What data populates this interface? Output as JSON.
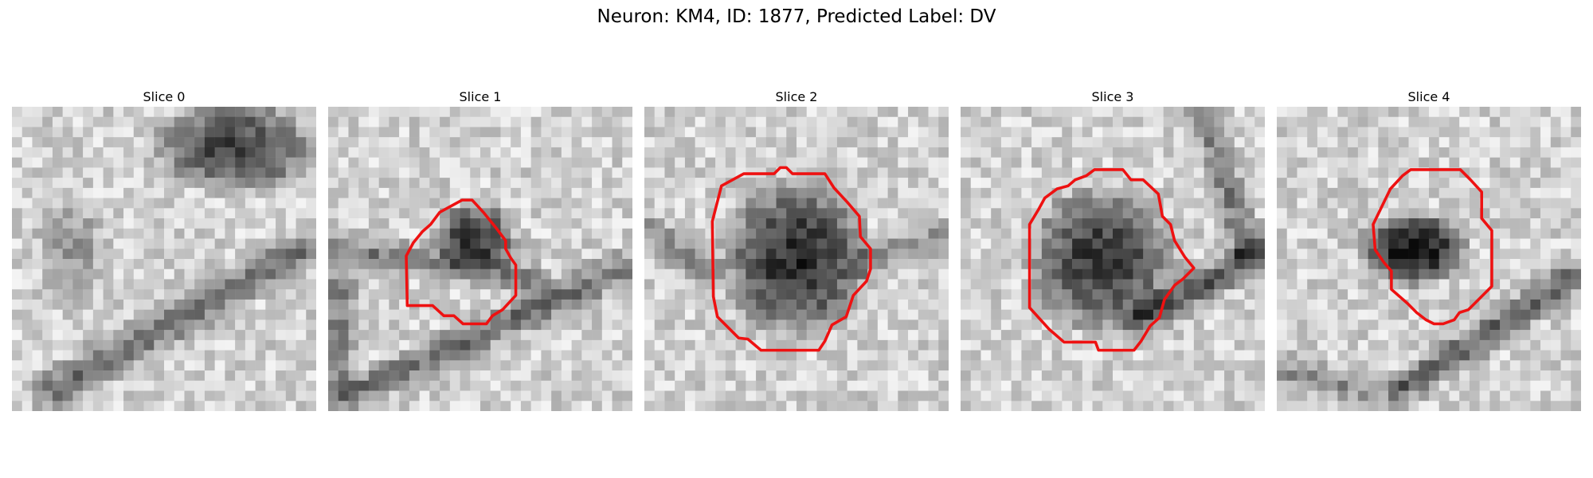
{
  "figure": {
    "suptitle": "Neuron: KM4, ID: 1877, Predicted Label: DV",
    "panels": [
      {
        "title": "Slice 0",
        "has_contour": false
      },
      {
        "title": "Slice 1",
        "has_contour": true
      },
      {
        "title": "Slice 2",
        "has_contour": true
      },
      {
        "title": "Slice 3",
        "has_contour": true
      },
      {
        "title": "Slice 4",
        "has_contour": true
      }
    ],
    "colormap": "grayscale",
    "contour_color": "#ee1111"
  }
}
